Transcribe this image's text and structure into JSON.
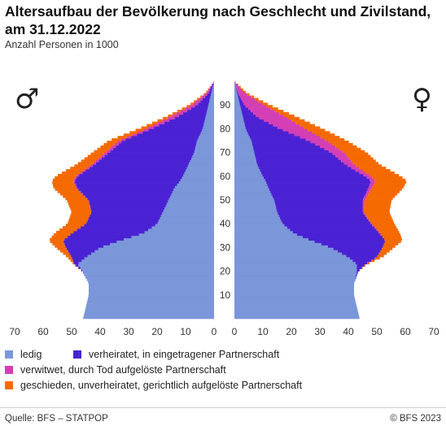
{
  "title": "Altersaufbau der Bevölkerung nach Geschlecht und Zivilstand, am 31.12.2022",
  "subtitle": "Anzahl Personen in 1000",
  "source": "Quelle: BFS – STATPOP",
  "copyright": "© BFS 2023",
  "legend": [
    {
      "key": "ledig",
      "label": "ledig",
      "color": "#7b97d9"
    },
    {
      "key": "verheiratet",
      "label": "verheiratet, in eingetragener Partnerschaft",
      "color": "#4a22d4"
    },
    {
      "key": "verwitwet",
      "label": "verwitwet, durch Tod aufgelöste Partnerschaft",
      "color": "#d43fb6"
    },
    {
      "key": "geschieden",
      "label": "geschieden, unverheiratet, gerichtlich aufgelöste Partnerschaft",
      "color": "#f56a00"
    }
  ],
  "chart_data": {
    "type": "bar",
    "orientation": "horizontal-population-pyramid",
    "age_ticks": [
      "10",
      "20",
      "30",
      "40",
      "50",
      "60",
      "70",
      "80",
      "90"
    ],
    "x_ticks": [
      "70",
      "60",
      "50",
      "40",
      "30",
      "20",
      "10",
      "0"
    ],
    "x_ticks_right": [
      "0",
      "10",
      "20",
      "30",
      "40",
      "50",
      "60",
      "70"
    ],
    "xlim": [
      0,
      70
    ],
    "ylim": [
      0,
      100
    ],
    "male_symbol": "♂",
    "female_symbol": "♀",
    "series_order": [
      "ledig",
      "verheiratet",
      "verwitwet",
      "geschieden"
    ],
    "male": {
      "age": [
        0,
        5,
        10,
        15,
        20,
        23,
        26,
        30,
        33,
        36,
        40,
        45,
        50,
        55,
        58,
        60,
        65,
        70,
        75,
        80,
        85,
        90,
        95,
        100
      ],
      "ledig": [
        46,
        45,
        44,
        44,
        46,
        48,
        45,
        40,
        33,
        25,
        20,
        18,
        16,
        14,
        12,
        11,
        9,
        7,
        6,
        4,
        3,
        2,
        1,
        0
      ],
      "verheiratet": [
        0,
        0,
        0,
        0,
        0.2,
        1,
        5,
        12,
        20,
        25,
        25,
        25,
        28,
        34,
        37,
        37,
        33,
        30,
        26,
        18,
        10,
        4,
        1,
        0
      ],
      "verwitwet": [
        0,
        0,
        0,
        0,
        0,
        0,
        0,
        0,
        0,
        0,
        0,
        0,
        0.2,
        0.3,
        0.4,
        0.6,
        0.8,
        1.2,
        1.5,
        2,
        2.5,
        2,
        0.8,
        0
      ],
      "geschieden": [
        0,
        0,
        0,
        0,
        0,
        0.3,
        1.5,
        3.5,
        5,
        6,
        6.5,
        7,
        7.5,
        8,
        7.5,
        7,
        5.5,
        4.5,
        3.5,
        2.5,
        1.5,
        0.8,
        0.3,
        0
      ]
    },
    "female": {
      "age": [
        0,
        5,
        10,
        15,
        20,
        23,
        26,
        30,
        33,
        36,
        40,
        45,
        50,
        55,
        58,
        60,
        65,
        70,
        75,
        80,
        85,
        90,
        95,
        100
      ],
      "ledig": [
        44,
        43,
        42,
        42,
        43,
        43,
        40,
        34,
        27,
        21,
        17,
        15,
        14,
        12,
        11,
        10,
        8,
        7,
        6,
        4,
        3,
        2,
        1,
        0
      ],
      "verheiratet": [
        0,
        0,
        0,
        0,
        0.5,
        3,
        10,
        18,
        26,
        30,
        31,
        30,
        31,
        35,
        37,
        36,
        31,
        27,
        20,
        12,
        5,
        1.5,
        0.3,
        0
      ],
      "verwitwet": [
        0,
        0,
        0,
        0,
        0,
        0,
        0,
        0,
        0,
        0.1,
        0.2,
        0.4,
        0.7,
        1.2,
        1.6,
        2,
        3,
        4.5,
        6.5,
        9,
        10,
        7,
        2.5,
        0
      ],
      "geschieden": [
        0,
        0,
        0,
        0,
        0,
        0.5,
        2,
        4,
        6,
        7,
        8,
        9,
        9.5,
        11,
        11,
        10.5,
        9,
        8,
        7,
        6,
        4,
        2,
        0.7,
        0
      ]
    }
  }
}
